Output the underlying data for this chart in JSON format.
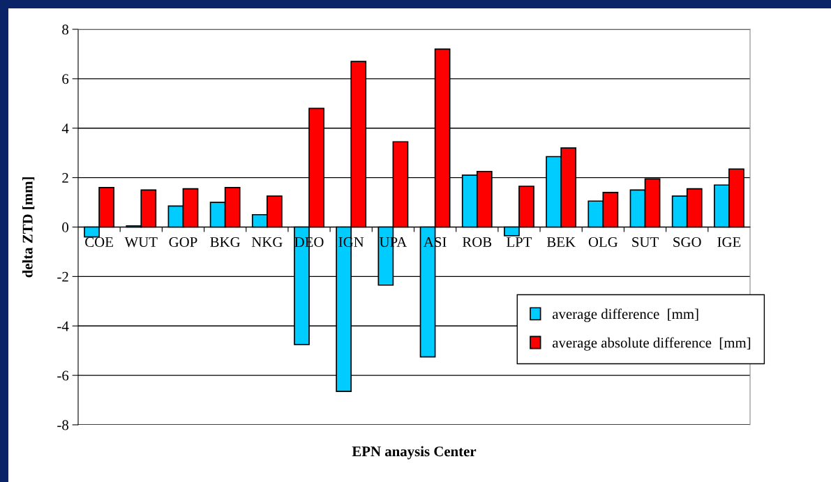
{
  "chart_data": {
    "type": "bar",
    "xlabel": "EPN anaysis Center",
    "ylabel": "delta ZTD [mm]",
    "categories": [
      "COE",
      "WUT",
      "GOP",
      "BKG",
      "NKG",
      "DEO",
      "IGN",
      "UPA",
      "ASI",
      "ROB",
      "LPT",
      "BEK",
      "OLG",
      "SUT",
      "SGO",
      "IGE"
    ],
    "series": [
      {
        "name": "average difference  [mm]",
        "color": "#00ccff",
        "values": [
          -0.4,
          0.05,
          0.85,
          1.0,
          0.5,
          -4.75,
          -6.65,
          -2.35,
          -5.25,
          2.1,
          -0.35,
          2.85,
          1.05,
          1.5,
          1.25,
          1.7
        ]
      },
      {
        "name": "average absolute difference  [mm]",
        "color": "#ff0000",
        "values": [
          1.6,
          1.5,
          1.55,
          1.6,
          1.25,
          4.8,
          6.7,
          3.45,
          7.2,
          2.25,
          1.65,
          3.2,
          1.4,
          1.95,
          1.55,
          2.35
        ]
      }
    ],
    "ylim": [
      -8,
      8
    ],
    "yticks": [
      -8,
      -6,
      -4,
      -2,
      0,
      2,
      4,
      6,
      8
    ],
    "grid": "y",
    "legend": "bottom right"
  }
}
